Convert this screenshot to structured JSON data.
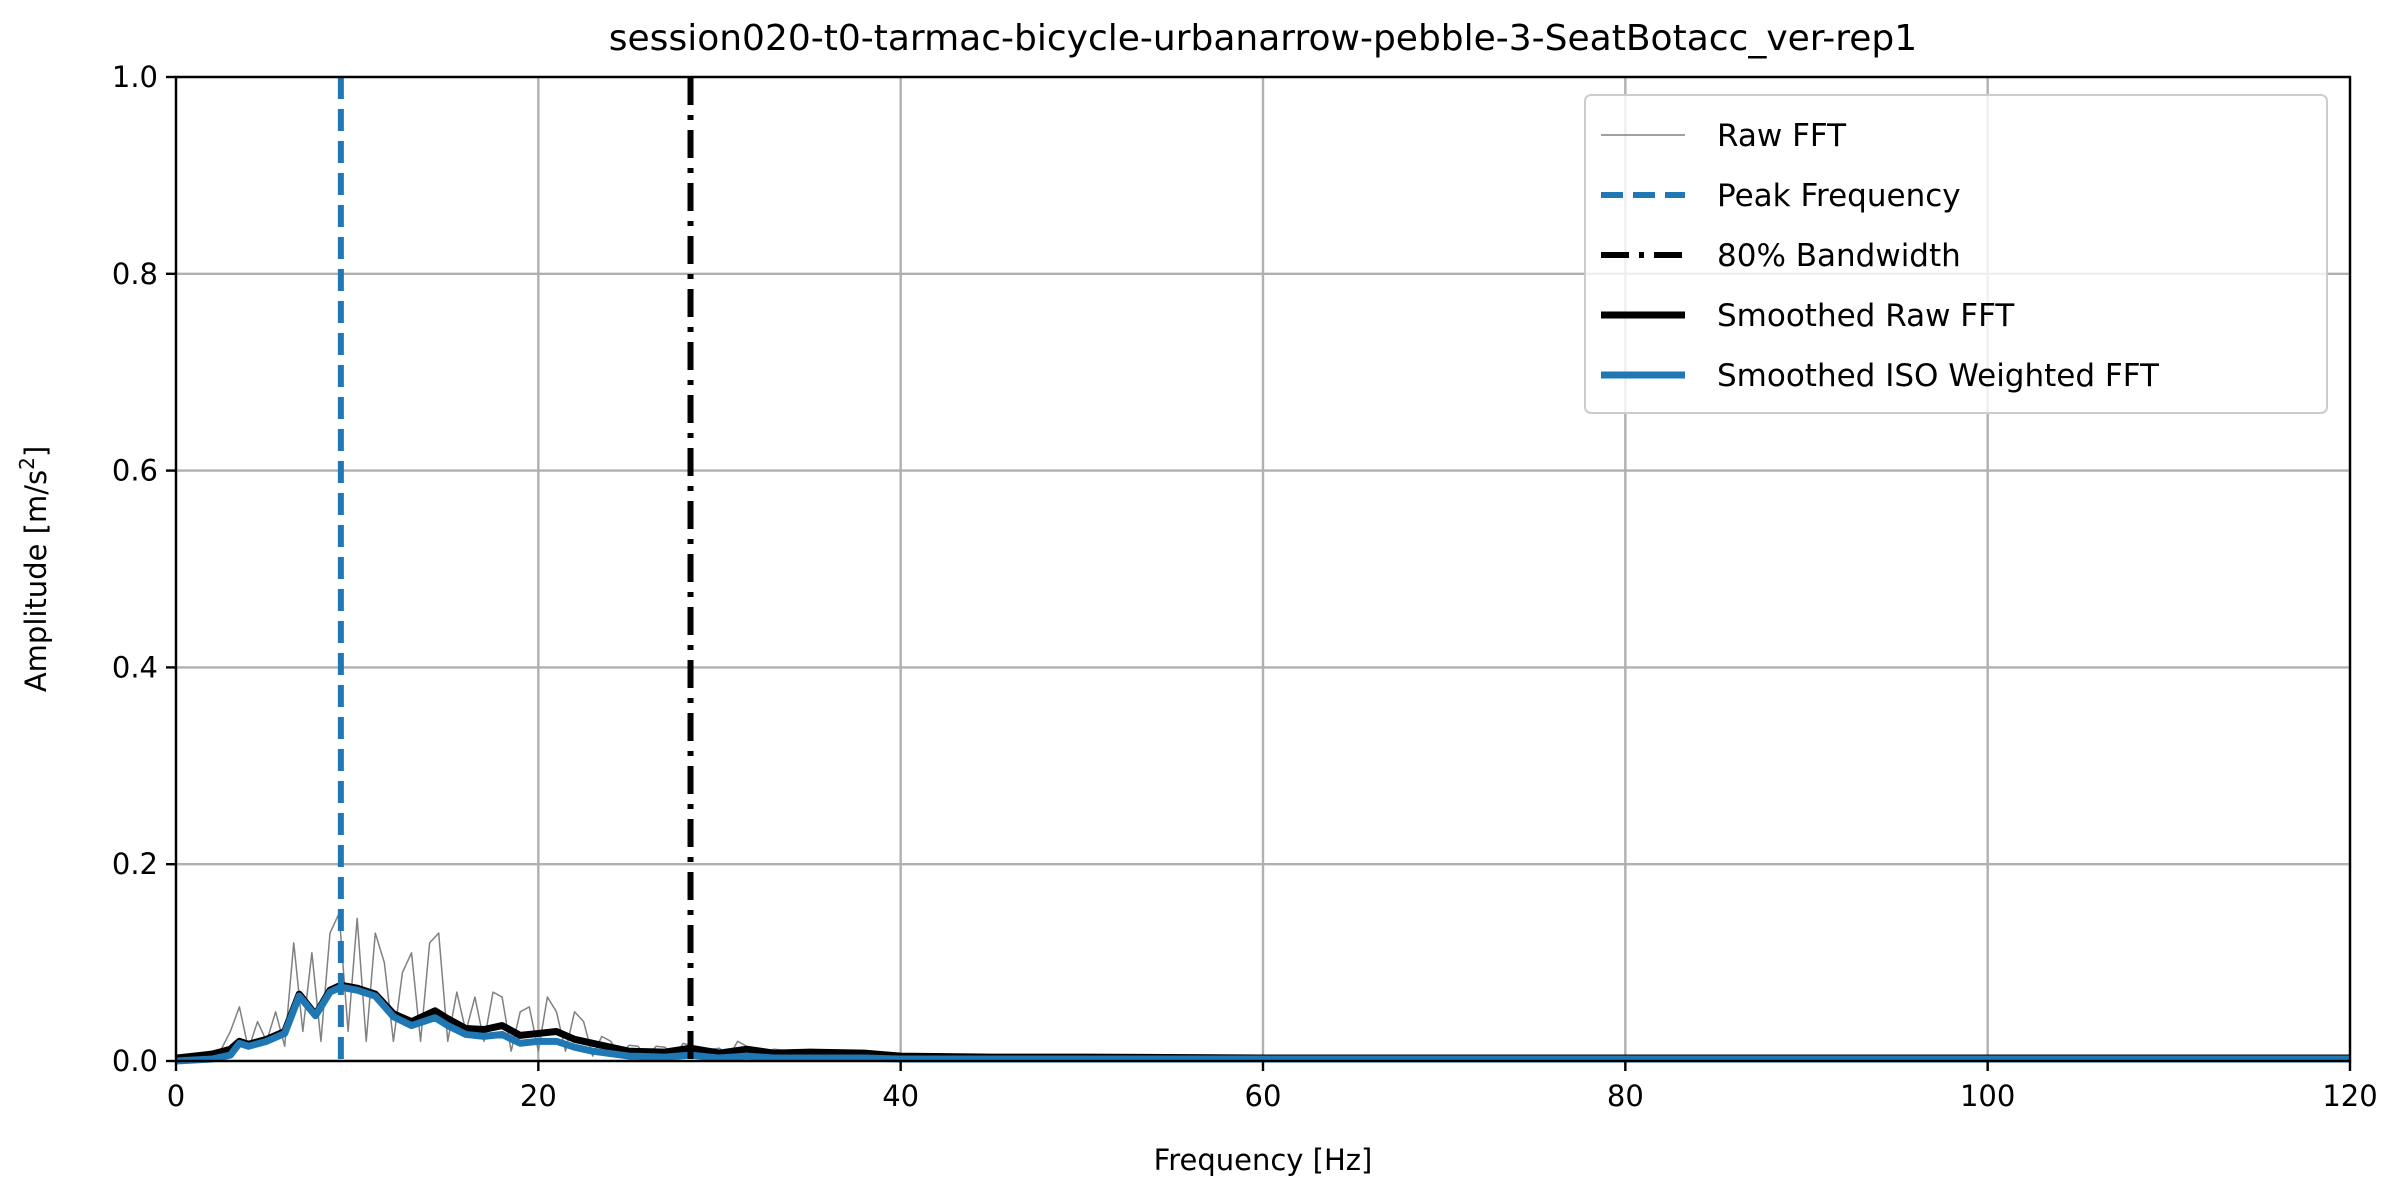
{
  "chart_data": {
    "type": "line",
    "title": "session020-t0-tarmac-bicycle-urbanarrow-pebble-3-SeatBotacc_ver-rep1",
    "xlabel": "Frequency [Hz]",
    "ylabel": "Amplitude [m/s²]",
    "ylabel_base": "Amplitude [m/s",
    "ylabel_sup": "2",
    "ylabel_end": "]",
    "xlim": [
      0,
      120
    ],
    "ylim": [
      0,
      1.0
    ],
    "xticks": [
      "0",
      "20",
      "40",
      "60",
      "80",
      "100",
      "120"
    ],
    "yticks": [
      "0.0",
      "0.2",
      "0.4",
      "0.6",
      "0.8",
      "1.0"
    ],
    "grid": true,
    "legend_placement": "top-right",
    "series": [
      {
        "name": "Raw FFT",
        "color": "#808080",
        "style": "thin-solid",
        "x": [
          0,
          0.5,
          1,
          1.5,
          2,
          2.5,
          3,
          3.5,
          4,
          4.5,
          5,
          5.5,
          6,
          6.5,
          7,
          7.5,
          8,
          8.5,
          9,
          9.5,
          10,
          10.5,
          11,
          11.5,
          12,
          12.5,
          13,
          13.5,
          14,
          14.5,
          15,
          15.5,
          16,
          16.5,
          17,
          17.5,
          18,
          18.5,
          19,
          19.5,
          20,
          20.5,
          21,
          21.5,
          22,
          22.5,
          23,
          23.5,
          24,
          24.5,
          25,
          25.5,
          26,
          26.5,
          27,
          27.5,
          28,
          28.5,
          29,
          29.5,
          30,
          30.5,
          31,
          31.5,
          32,
          33,
          34,
          35,
          36,
          37,
          38,
          39,
          40,
          45,
          50,
          60,
          70,
          80,
          90,
          100,
          110,
          120
        ],
        "y": [
          0.003,
          0.005,
          0.006,
          0.008,
          0.01,
          0.012,
          0.03,
          0.055,
          0.012,
          0.04,
          0.02,
          0.05,
          0.015,
          0.12,
          0.03,
          0.11,
          0.02,
          0.13,
          0.15,
          0.03,
          0.145,
          0.02,
          0.13,
          0.1,
          0.02,
          0.09,
          0.11,
          0.02,
          0.12,
          0.13,
          0.02,
          0.07,
          0.03,
          0.065,
          0.02,
          0.07,
          0.065,
          0.01,
          0.05,
          0.055,
          0.01,
          0.065,
          0.05,
          0.01,
          0.05,
          0.04,
          0.005,
          0.025,
          0.02,
          0.005,
          0.016,
          0.015,
          0.004,
          0.015,
          0.014,
          0.004,
          0.018,
          0.015,
          0.004,
          0.012,
          0.013,
          0.004,
          0.02,
          0.015,
          0.006,
          0.012,
          0.01,
          0.011,
          0.009,
          0.01,
          0.009,
          0.007,
          0.006,
          0.005,
          0.004,
          0.003,
          0.003,
          0.002,
          0.002,
          0.002,
          0.002,
          0.002
        ]
      },
      {
        "name": "Smoothed Raw FFT",
        "color": "#000000",
        "style": "thick-solid",
        "x": [
          0,
          1,
          2,
          3,
          3.5,
          4,
          5,
          6,
          6.8,
          7.7,
          8.5,
          9.1,
          10,
          11,
          12,
          13,
          14.3,
          15,
          16,
          17,
          18,
          19,
          20,
          21,
          22,
          23,
          25,
          27,
          28.4,
          30,
          31.5,
          33,
          35,
          38,
          40,
          45,
          50,
          60,
          80,
          100,
          120
        ],
        "y": [
          0.003,
          0.005,
          0.007,
          0.012,
          0.02,
          0.017,
          0.022,
          0.03,
          0.068,
          0.047,
          0.072,
          0.077,
          0.074,
          0.068,
          0.048,
          0.04,
          0.051,
          0.043,
          0.033,
          0.032,
          0.036,
          0.026,
          0.028,
          0.03,
          0.022,
          0.018,
          0.01,
          0.009,
          0.013,
          0.008,
          0.012,
          0.008,
          0.009,
          0.008,
          0.005,
          0.004,
          0.004,
          0.003,
          0.003,
          0.003,
          0.003
        ]
      },
      {
        "name": "Smoothed ISO Weighted FFT",
        "color": "#1f77b4",
        "style": "thick-solid",
        "x": [
          0,
          1,
          2,
          3,
          3.5,
          4,
          5,
          6,
          6.8,
          7.7,
          8.5,
          9.1,
          10,
          11,
          12,
          13,
          14.3,
          15,
          16,
          17,
          18,
          19,
          20,
          21,
          22,
          23,
          25,
          27,
          28.4,
          30,
          31.5,
          33,
          35,
          38,
          40,
          45,
          50,
          60,
          80,
          100,
          120
        ],
        "y": [
          0.0,
          0.001,
          0.002,
          0.006,
          0.018,
          0.015,
          0.02,
          0.028,
          0.066,
          0.046,
          0.07,
          0.075,
          0.072,
          0.066,
          0.045,
          0.036,
          0.044,
          0.036,
          0.027,
          0.025,
          0.027,
          0.018,
          0.02,
          0.02,
          0.014,
          0.01,
          0.005,
          0.004,
          0.006,
          0.003,
          0.005,
          0.003,
          0.003,
          0.003,
          0.002,
          0.002,
          0.002,
          0.002,
          0.002,
          0.002,
          0.002
        ]
      }
    ],
    "vlines": [
      {
        "name": "Peak Frequency",
        "x": 9.1,
        "color": "#1f77b4",
        "style": "dashed"
      },
      {
        "name": "80% Bandwidth",
        "x": 28.4,
        "color": "#000000",
        "style": "dashdot"
      }
    ],
    "legend": [
      "Raw FFT",
      "Peak Frequency",
      "80% Bandwidth",
      "Smoothed Raw FFT",
      "Smoothed ISO Weighted FFT"
    ]
  }
}
